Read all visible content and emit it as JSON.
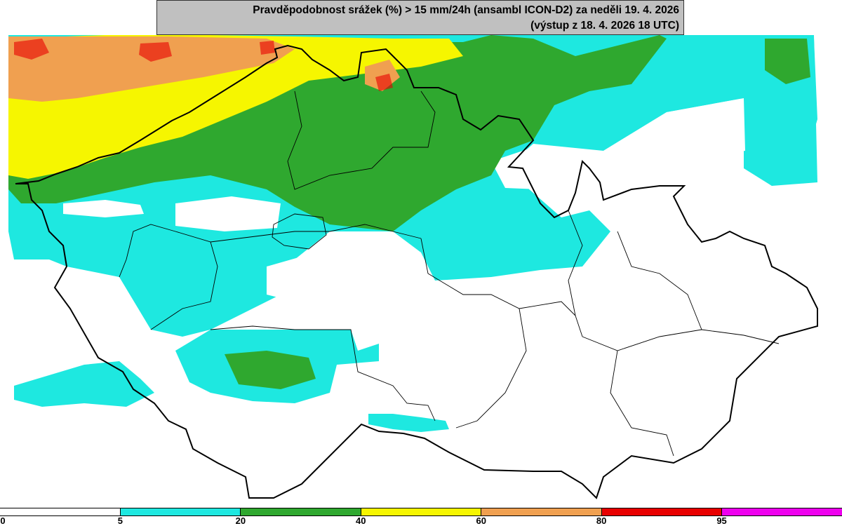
{
  "title": {
    "line1": "Pravděpodobnost srážek (%) > 15 mm/24h (ansambl ICON-D2) za neděli 19. 4. 2026",
    "line2": "(výstup z 18. 4. 2026 18 UTC)"
  },
  "legend": {
    "segments": [
      {
        "from": 0,
        "to": 5,
        "color": "#ffffff"
      },
      {
        "from": 5,
        "to": 20,
        "color": "#1ee8e0"
      },
      {
        "from": 20,
        "to": 40,
        "color": "#2fa82f"
      },
      {
        "from": 40,
        "to": 60,
        "color": "#f6f600"
      },
      {
        "from": 60,
        "to": 80,
        "color": "#f0a050"
      },
      {
        "from": 80,
        "to": 95,
        "color": "#e80000"
      },
      {
        "from": 95,
        "to": 100,
        "color": "#ee00ee"
      }
    ],
    "tick_labels": [
      "0",
      "5",
      "20",
      "40",
      "60",
      "80",
      "95"
    ]
  },
  "map": {
    "region": "Czech Republic",
    "probability_colors": {
      "class_5_20": "#1ee8e0",
      "class_20_40": "#2fa82f",
      "class_40_60": "#f6f600",
      "class_60_80": "#f0a050",
      "class_80_95": "#e80000"
    },
    "border_color": "#000000"
  }
}
